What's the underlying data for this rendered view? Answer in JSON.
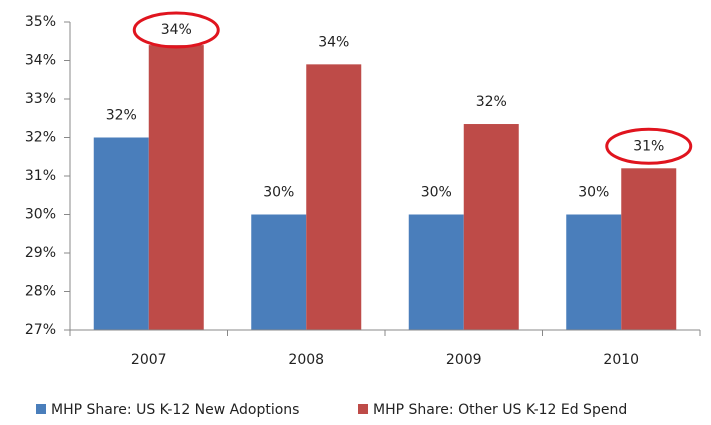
{
  "chart_data": {
    "type": "bar",
    "categories": [
      "2007",
      "2008",
      "2009",
      "2010"
    ],
    "series": [
      {
        "name": "MHP Share: US K-12 New Adoptions",
        "color": "#4a7ebb",
        "values": [
          32,
          30,
          30,
          30
        ],
        "value_labels": [
          "32%",
          "30%",
          "30%",
          "30%"
        ]
      },
      {
        "name": "MHP Share: Other US K-12 Ed Spend",
        "color": "#be4b48",
        "values": [
          34.4,
          33.9,
          32.35,
          31.2
        ],
        "value_labels": [
          "34%",
          "34%",
          "32%",
          "31%"
        ]
      }
    ],
    "ylim": [
      27,
      35
    ],
    "yticks": [
      {
        "value": 27,
        "label": "27%"
      },
      {
        "value": 28,
        "label": "28%"
      },
      {
        "value": 29,
        "label": "29%"
      },
      {
        "value": 30,
        "label": "30%"
      },
      {
        "value": 31,
        "label": "31%"
      },
      {
        "value": 32,
        "label": "32%"
      },
      {
        "value": 33,
        "label": "33%"
      },
      {
        "value": 34,
        "label": "34%"
      },
      {
        "value": 35,
        "label": "35%"
      }
    ],
    "grid": false,
    "legend": "bottom",
    "highlighted_labels": [
      {
        "series": 1,
        "index": 0
      },
      {
        "series": 1,
        "index": 3
      }
    ],
    "highlight_color": "#e0141e"
  }
}
